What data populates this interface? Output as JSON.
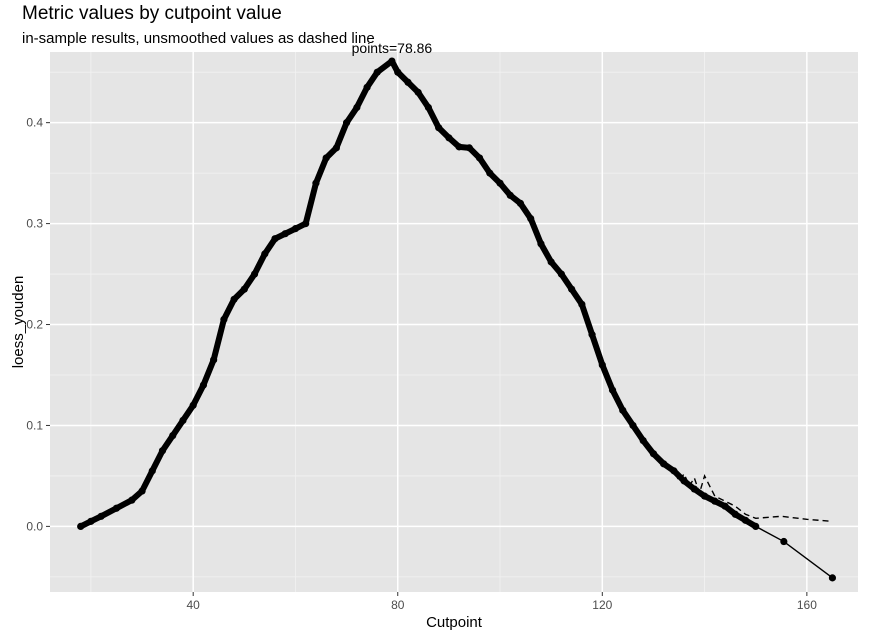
{
  "chart_data": {
    "type": "line",
    "title": "Metric values by cutpoint value",
    "subtitle": "in-sample results, unsmoothed values as dashed line",
    "xlabel": "Cutpoint",
    "ylabel": "loess_youden",
    "xlim": [
      12,
      170
    ],
    "ylim": [
      -0.065,
      0.47
    ],
    "x_ticks": [
      40,
      80,
      120,
      160
    ],
    "y_ticks": [
      0.0,
      0.1,
      0.2,
      0.3,
      0.4
    ],
    "y_tick_labels": [
      "0.0",
      "0.1",
      "0.2",
      "0.3",
      "0.4"
    ],
    "grid": true,
    "annotation": {
      "text": "points=78.86",
      "x": 78.86,
      "y": 0.461
    },
    "series": [
      {
        "style": "solid-with-points",
        "x": [
          18,
          20,
          22,
          25,
          28,
          30,
          32,
          34,
          36,
          38,
          40,
          42,
          44,
          46,
          48,
          50,
          52,
          54,
          56,
          58,
          60,
          62,
          64,
          66,
          68,
          70,
          72,
          74,
          76,
          78.86,
          80,
          82,
          84,
          86,
          88,
          90,
          92,
          94,
          96,
          98,
          100,
          102,
          104,
          106,
          108,
          110,
          112,
          114,
          116,
          118,
          120,
          122,
          124,
          126,
          128,
          130,
          132,
          134,
          136,
          138,
          140,
          142,
          144,
          146,
          148,
          150,
          155.5,
          165
        ],
        "y": [
          0.0,
          0.005,
          0.01,
          0.018,
          0.026,
          0.035,
          0.055,
          0.075,
          0.09,
          0.105,
          0.12,
          0.14,
          0.165,
          0.205,
          0.225,
          0.235,
          0.25,
          0.27,
          0.285,
          0.29,
          0.295,
          0.3,
          0.34,
          0.365,
          0.375,
          0.4,
          0.415,
          0.435,
          0.45,
          0.461,
          0.45,
          0.44,
          0.43,
          0.415,
          0.395,
          0.385,
          0.376,
          0.375,
          0.365,
          0.35,
          0.34,
          0.328,
          0.32,
          0.305,
          0.28,
          0.262,
          0.25,
          0.235,
          0.22,
          0.19,
          0.16,
          0.135,
          0.115,
          0.1,
          0.085,
          0.072,
          0.062,
          0.055,
          0.045,
          0.037,
          0.03,
          0.025,
          0.02,
          0.012,
          0.006,
          0.0,
          -0.015,
          -0.051
        ]
      },
      {
        "style": "dashed",
        "x": [
          130,
          132,
          134,
          135,
          136,
          137,
          138,
          139,
          140,
          142,
          144,
          146,
          148,
          150,
          155,
          160,
          165
        ],
        "y": [
          0.072,
          0.062,
          0.055,
          0.045,
          0.052,
          0.04,
          0.048,
          0.033,
          0.05,
          0.03,
          0.025,
          0.02,
          0.012,
          0.008,
          0.01,
          0.007,
          0.005
        ]
      }
    ]
  }
}
